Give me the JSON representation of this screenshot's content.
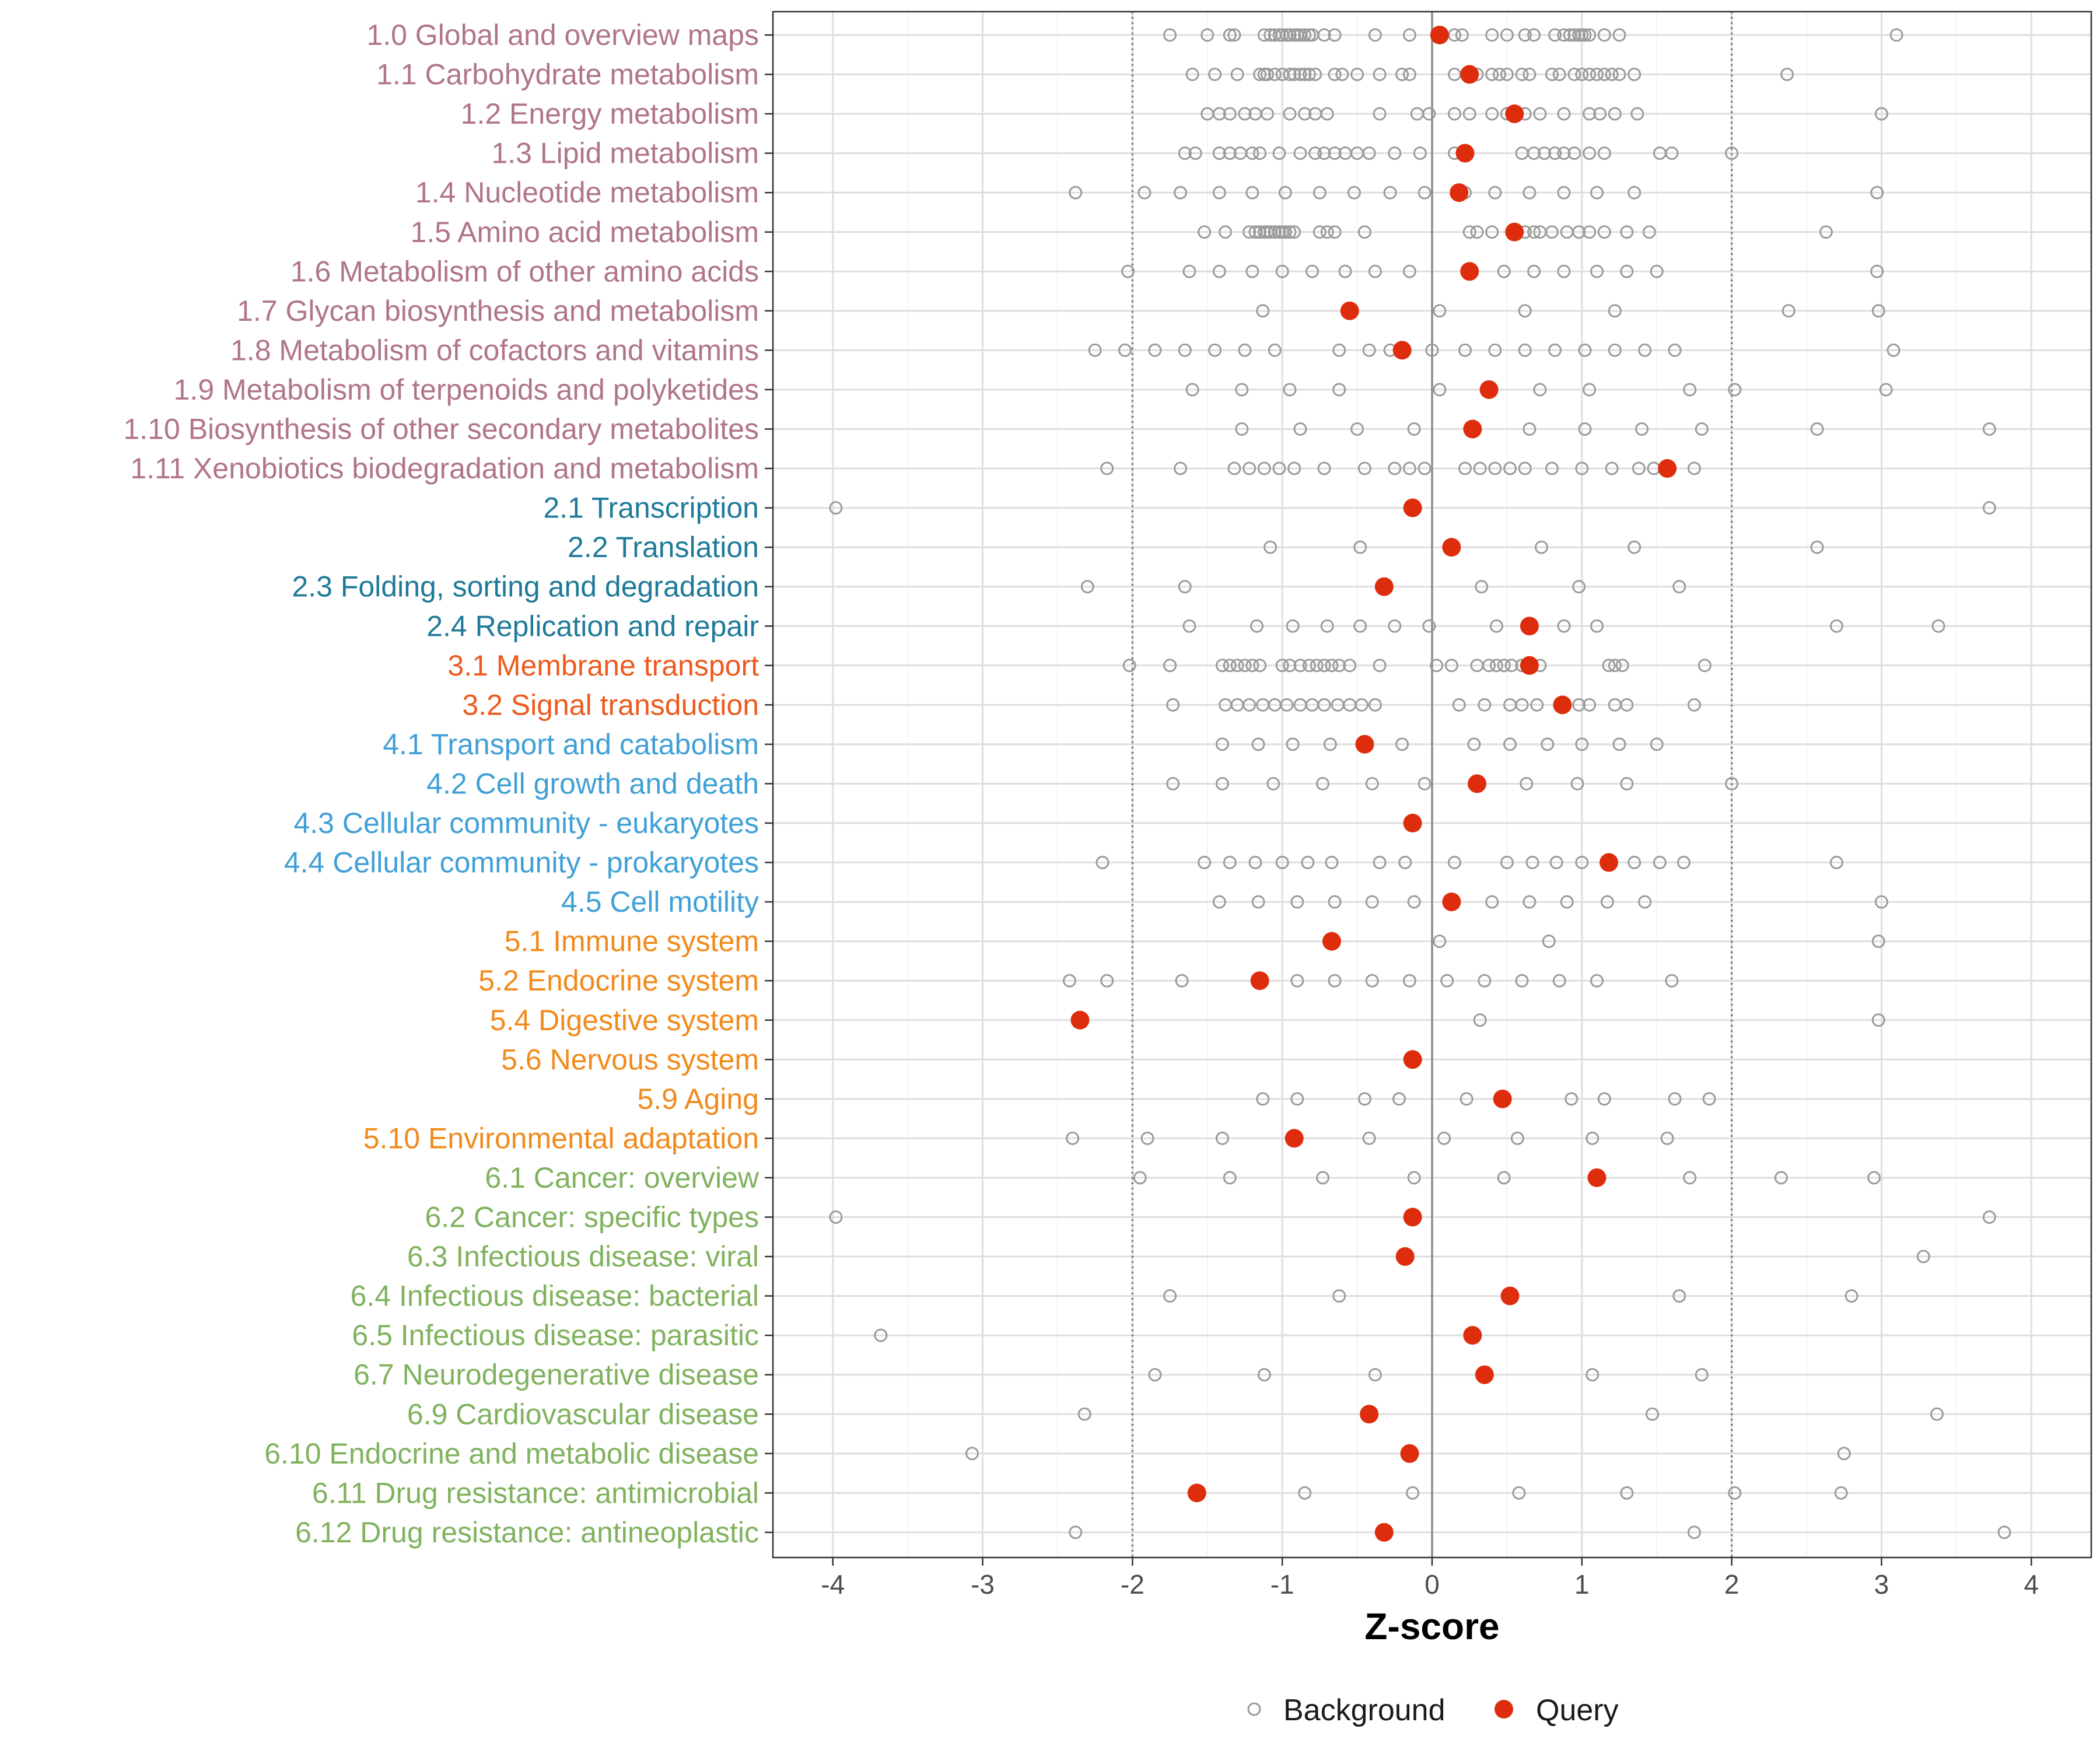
{
  "chart_data": {
    "type": "scatter",
    "xlabel": "Z-score",
    "xlim": [
      -4.4,
      4.4
    ],
    "xticks": [
      -4,
      -3,
      -2,
      -1,
      0,
      1,
      2,
      3,
      4
    ],
    "xtick_labels": [
      "-4",
      "-3",
      "-2",
      "-1",
      "0",
      "1",
      "2",
      "3",
      "4"
    ],
    "reference_lines": {
      "solid": 0,
      "dotted": [
        -2,
        2
      ]
    },
    "legend": {
      "position": "bottom",
      "items": [
        {
          "label": "Background",
          "symbol": "open-circle",
          "color": "#999999"
        },
        {
          "label": "Query",
          "symbol": "filled-circle",
          "color": "#de2d0d"
        }
      ]
    },
    "group_colors": {
      "1": "#b07588",
      "2": "#1f7a99",
      "3": "#ee5a1d",
      "4": "#40a0d6",
      "5": "#f18a1c",
      "6": "#80b25e"
    },
    "categories": [
      {
        "label": "1.0 Global and overview maps",
        "group": "1",
        "query": 0.05,
        "background": [
          -1.75,
          -1.5,
          -1.35,
          -1.32,
          -1.12,
          -1.08,
          -1.05,
          -1.02,
          -1.0,
          -0.97,
          -0.95,
          -0.92,
          -0.9,
          -0.88,
          -0.85,
          -0.82,
          -0.8,
          -0.72,
          -0.65,
          -0.38,
          -0.15,
          0.15,
          0.2,
          0.4,
          0.5,
          0.62,
          0.68,
          0.82,
          0.88,
          0.92,
          0.95,
          0.98,
          1.0,
          1.02,
          1.05,
          1.15,
          1.25,
          3.1
        ]
      },
      {
        "label": "1.1 Carbohydrate metabolism",
        "group": "1",
        "query": 0.25,
        "background": [
          -1.6,
          -1.45,
          -1.3,
          -1.15,
          -1.12,
          -1.1,
          -1.05,
          -1.0,
          -0.95,
          -0.92,
          -0.88,
          -0.85,
          -0.82,
          -0.78,
          -0.65,
          -0.6,
          -0.5,
          -0.35,
          -0.2,
          -0.15,
          0.15,
          0.3,
          0.4,
          0.45,
          0.5,
          0.6,
          0.65,
          0.8,
          0.85,
          0.95,
          1.0,
          1.05,
          1.1,
          1.15,
          1.2,
          1.25,
          1.35,
          2.37
        ]
      },
      {
        "label": "1.2 Energy metabolism",
        "group": "1",
        "query": 0.55,
        "background": [
          -1.5,
          -1.42,
          -1.35,
          -1.25,
          -1.18,
          -1.1,
          -0.95,
          -0.85,
          -0.78,
          -0.7,
          -0.35,
          -0.1,
          -0.02,
          0.15,
          0.25,
          0.4,
          0.5,
          0.62,
          0.72,
          0.88,
          1.05,
          1.12,
          1.22,
          1.37,
          3.0
        ]
      },
      {
        "label": "1.3 Lipid metabolism",
        "group": "1",
        "query": 0.22,
        "background": [
          -1.65,
          -1.58,
          -1.42,
          -1.35,
          -1.28,
          -1.2,
          -1.15,
          -1.02,
          -0.88,
          -0.78,
          -0.72,
          -0.65,
          -0.58,
          -0.5,
          -0.42,
          -0.25,
          -0.08,
          0.15,
          0.6,
          0.68,
          0.75,
          0.82,
          0.88,
          0.95,
          1.05,
          1.15,
          1.52,
          1.6,
          2.0
        ]
      },
      {
        "label": "1.4 Nucleotide metabolism",
        "group": "1",
        "query": 0.18,
        "background": [
          -2.38,
          -1.92,
          -1.68,
          -1.42,
          -1.2,
          -0.98,
          -0.75,
          -0.52,
          -0.28,
          -0.05,
          0.22,
          0.42,
          0.65,
          0.88,
          1.1,
          1.35,
          2.97
        ]
      },
      {
        "label": "1.5 Amino acid metabolism",
        "group": "1",
        "query": 0.55,
        "background": [
          -1.52,
          -1.38,
          -1.22,
          -1.18,
          -1.15,
          -1.12,
          -1.1,
          -1.08,
          -1.05,
          -1.02,
          -1.0,
          -0.98,
          -0.95,
          -0.92,
          -0.75,
          -0.7,
          -0.65,
          -0.45,
          0.25,
          0.3,
          0.4,
          0.62,
          0.68,
          0.72,
          0.8,
          0.9,
          0.98,
          1.05,
          1.15,
          1.3,
          1.45,
          2.63
        ]
      },
      {
        "label": "1.6 Metabolism of other amino acids",
        "group": "1",
        "query": 0.25,
        "background": [
          -2.03,
          -1.62,
          -1.42,
          -1.2,
          -1.0,
          -0.8,
          -0.58,
          -0.38,
          -0.15,
          0.48,
          0.68,
          0.88,
          1.1,
          1.3,
          1.5,
          2.97
        ]
      },
      {
        "label": "1.7 Glycan biosynthesis and metabolism",
        "group": "1",
        "query": -0.55,
        "background": [
          -1.13,
          0.05,
          0.62,
          1.22,
          2.38,
          2.98
        ]
      },
      {
        "label": "1.8 Metabolism of cofactors and vitamins",
        "group": "1",
        "query": -0.2,
        "background": [
          -2.25,
          -2.05,
          -1.85,
          -1.65,
          -1.45,
          -1.25,
          -1.05,
          -0.62,
          -0.42,
          -0.28,
          0.0,
          0.22,
          0.42,
          0.62,
          0.82,
          1.02,
          1.22,
          1.42,
          1.62,
          3.08
        ]
      },
      {
        "label": "1.9 Metabolism of terpenoids and polyketides",
        "group": "1",
        "query": 0.38,
        "background": [
          -1.6,
          -1.27,
          -0.95,
          -0.62,
          0.05,
          0.72,
          1.05,
          1.72,
          2.02,
          3.03
        ]
      },
      {
        "label": "1.10 Biosynthesis of other secondary metabolites",
        "group": "1",
        "query": 0.27,
        "background": [
          -1.27,
          -0.88,
          -0.5,
          -0.12,
          0.65,
          1.02,
          1.4,
          1.8,
          2.57,
          3.72
        ]
      },
      {
        "label": "1.11 Xenobiotics biodegradation and metabolism",
        "group": "1",
        "query": 1.57,
        "background": [
          -2.17,
          -1.68,
          -1.32,
          -1.22,
          -1.12,
          -1.02,
          -0.92,
          -0.72,
          -0.45,
          -0.25,
          -0.15,
          -0.05,
          0.22,
          0.32,
          0.42,
          0.52,
          0.62,
          0.8,
          1.0,
          1.2,
          1.38,
          1.48,
          1.75
        ]
      },
      {
        "label": "2.1 Transcription",
        "group": "2",
        "query": -0.13,
        "background": [
          -3.98,
          3.72
        ]
      },
      {
        "label": "2.2 Translation",
        "group": "2",
        "query": 0.13,
        "background": [
          -1.08,
          -0.48,
          0.73,
          1.35,
          2.57
        ]
      },
      {
        "label": "2.3 Folding, sorting and degradation",
        "group": "2",
        "query": -0.32,
        "background": [
          -2.3,
          -1.65,
          0.33,
          0.98,
          1.65
        ]
      },
      {
        "label": "2.4 Replication and repair",
        "group": "2",
        "query": 0.65,
        "background": [
          -1.62,
          -1.17,
          -0.93,
          -0.7,
          -0.48,
          -0.25,
          -0.02,
          0.43,
          0.88,
          1.1,
          2.7,
          3.38
        ]
      },
      {
        "label": "3.1 Membrane transport",
        "group": "3",
        "query": 0.65,
        "background": [
          -2.02,
          -1.75,
          -1.4,
          -1.35,
          -1.3,
          -1.25,
          -1.2,
          -1.15,
          -1.0,
          -0.95,
          -0.88,
          -0.82,
          -0.77,
          -0.72,
          -0.67,
          -0.62,
          -0.55,
          -0.35,
          0.03,
          0.13,
          0.3,
          0.38,
          0.43,
          0.48,
          0.53,
          0.6,
          0.72,
          1.18,
          1.22,
          1.27,
          1.82
        ]
      },
      {
        "label": "3.2 Signal transduction",
        "group": "3",
        "query": 0.87,
        "background": [
          -1.73,
          -1.38,
          -1.3,
          -1.22,
          -1.13,
          -1.05,
          -0.97,
          -0.88,
          -0.8,
          -0.72,
          -0.63,
          -0.55,
          -0.47,
          -0.38,
          0.18,
          0.35,
          0.52,
          0.6,
          0.7,
          0.98,
          1.05,
          1.22,
          1.3,
          1.75
        ]
      },
      {
        "label": "4.1 Transport and catabolism",
        "group": "4",
        "query": -0.45,
        "background": [
          -1.4,
          -1.16,
          -0.93,
          -0.68,
          -0.2,
          0.28,
          0.52,
          0.77,
          1.0,
          1.25,
          1.5
        ]
      },
      {
        "label": "4.2 Cell growth and death",
        "group": "4",
        "query": 0.3,
        "background": [
          -1.73,
          -1.4,
          -1.06,
          -0.73,
          -0.4,
          -0.05,
          0.63,
          0.97,
          1.3,
          2.0
        ]
      },
      {
        "label": "4.3 Cellular community - eukaryotes",
        "group": "4",
        "query": -0.13,
        "background": []
      },
      {
        "label": "4.4 Cellular community - prokaryotes",
        "group": "4",
        "query": 1.18,
        "background": [
          -2.2,
          -1.52,
          -1.35,
          -1.18,
          -1.0,
          -0.83,
          -0.67,
          -0.35,
          -0.18,
          0.15,
          0.5,
          0.67,
          0.83,
          1.0,
          1.35,
          1.52,
          1.68,
          2.7
        ]
      },
      {
        "label": "4.5 Cell motility",
        "group": "4",
        "query": 0.13,
        "background": [
          -1.42,
          -1.16,
          -0.9,
          -0.65,
          -0.4,
          -0.12,
          0.4,
          0.65,
          0.9,
          1.17,
          1.42,
          3.0
        ]
      },
      {
        "label": "5.1 Immune system",
        "group": "5",
        "query": -0.67,
        "background": [
          0.05,
          0.78,
          2.98
        ]
      },
      {
        "label": "5.2 Endocrine system",
        "group": "5",
        "query": -1.15,
        "background": [
          -2.42,
          -2.17,
          -1.67,
          -0.9,
          -0.65,
          -0.4,
          -0.15,
          0.1,
          0.35,
          0.6,
          0.85,
          1.1,
          1.6
        ]
      },
      {
        "label": "5.4 Digestive system",
        "group": "5",
        "query": -2.35,
        "background": [
          0.32,
          2.98
        ]
      },
      {
        "label": "5.6 Nervous system",
        "group": "5",
        "query": -0.13,
        "background": []
      },
      {
        "label": "5.9 Aging",
        "group": "5",
        "query": 0.47,
        "background": [
          -1.13,
          -0.9,
          -0.45,
          -0.22,
          0.23,
          0.93,
          1.15,
          1.62,
          1.85
        ]
      },
      {
        "label": "5.10 Environmental adaptation",
        "group": "5",
        "query": -0.92,
        "background": [
          -2.4,
          -1.9,
          -1.4,
          -0.42,
          0.08,
          0.57,
          1.07,
          1.57
        ]
      },
      {
        "label": "6.1 Cancer: overview",
        "group": "6",
        "query": 1.1,
        "background": [
          -1.95,
          -1.35,
          -0.73,
          -0.12,
          0.48,
          1.72,
          2.33,
          2.95
        ]
      },
      {
        "label": "6.2 Cancer: specific types",
        "group": "6",
        "query": -0.13,
        "background": [
          -3.98,
          3.72
        ]
      },
      {
        "label": "6.3 Infectious disease: viral",
        "group": "6",
        "query": -0.18,
        "background": [
          3.28
        ]
      },
      {
        "label": "6.4 Infectious disease: bacterial",
        "group": "6",
        "query": 0.52,
        "background": [
          -1.75,
          -0.62,
          1.65,
          2.8
        ]
      },
      {
        "label": "6.5 Infectious disease: parasitic",
        "group": "6",
        "query": 0.27,
        "background": [
          -3.68
        ]
      },
      {
        "label": "6.7 Neurodegenerative disease",
        "group": "6",
        "query": 0.35,
        "background": [
          -1.85,
          -1.12,
          -0.38,
          1.07,
          1.8
        ]
      },
      {
        "label": "6.9 Cardiovascular disease",
        "group": "6",
        "query": -0.42,
        "background": [
          -2.32,
          1.47,
          3.37
        ]
      },
      {
        "label": "6.10 Endocrine and metabolic disease",
        "group": "6",
        "query": -0.15,
        "background": [
          -3.07,
          2.75
        ]
      },
      {
        "label": "6.11 Drug resistance: antimicrobial",
        "group": "6",
        "query": -1.57,
        "background": [
          -0.85,
          -0.13,
          0.58,
          1.3,
          2.02,
          2.73
        ]
      },
      {
        "label": "6.12 Drug resistance: antineoplastic",
        "group": "6",
        "query": -0.32,
        "background": [
          -2.38,
          1.75,
          3.82
        ]
      }
    ]
  }
}
